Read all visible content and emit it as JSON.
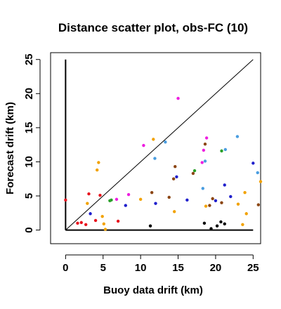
{
  "chart_data": {
    "type": "scatter",
    "title": "Distance scatter plot, obs-FC (10)",
    "xlabel": "Buoy data drift (km)",
    "ylabel": "Forecast drift (km)",
    "xlim": [
      -2,
      26
    ],
    "ylim": [
      -2,
      26
    ],
    "xticks": [
      0,
      5,
      10,
      15,
      20,
      25
    ],
    "yticks": [
      0,
      5,
      10,
      15,
      20,
      25
    ],
    "grid": false,
    "reference_lines": [
      {
        "kind": "diagonal",
        "from": [
          0,
          0
        ],
        "to": [
          25,
          25
        ],
        "color": "#000000"
      },
      {
        "kind": "vertical",
        "from": [
          0,
          0
        ],
        "to": [
          0,
          25
        ],
        "color": "#000000"
      },
      {
        "kind": "horizontal",
        "from": [
          0,
          0
        ],
        "to": [
          25,
          0
        ],
        "color": "#000000"
      }
    ],
    "points": [
      {
        "x": 0.0,
        "y": 4.4,
        "color": "#e8141e"
      },
      {
        "x": 1.6,
        "y": 1.0,
        "color": "#e8141e"
      },
      {
        "x": 2.1,
        "y": 1.1,
        "color": "#e8141e"
      },
      {
        "x": 2.7,
        "y": 0.8,
        "color": "#e8141e"
      },
      {
        "x": 3.1,
        "y": 5.3,
        "color": "#e8141e"
      },
      {
        "x": 4.0,
        "y": 1.4,
        "color": "#e8141e"
      },
      {
        "x": 4.6,
        "y": 5.1,
        "color": "#e8141e"
      },
      {
        "x": 7.0,
        "y": 1.3,
        "color": "#e8141e"
      },
      {
        "x": 3.3,
        "y": 2.4,
        "color": "#2020cc"
      },
      {
        "x": 8.0,
        "y": 3.6,
        "color": "#2020cc"
      },
      {
        "x": 12.0,
        "y": 3.9,
        "color": "#2020cc"
      },
      {
        "x": 14.8,
        "y": 7.8,
        "color": "#2020cc"
      },
      {
        "x": 16.2,
        "y": 4.4,
        "color": "#2020cc"
      },
      {
        "x": 20.0,
        "y": 4.3,
        "color": "#2020cc"
      },
      {
        "x": 21.2,
        "y": 6.6,
        "color": "#2020cc"
      },
      {
        "x": 22.0,
        "y": 4.9,
        "color": "#2020cc"
      },
      {
        "x": 25.0,
        "y": 9.8,
        "color": "#2020cc"
      },
      {
        "x": 2.9,
        "y": 3.9,
        "color": "#f2a200"
      },
      {
        "x": 4.2,
        "y": 8.8,
        "color": "#f2a200"
      },
      {
        "x": 4.4,
        "y": 9.9,
        "color": "#f2a200"
      },
      {
        "x": 4.9,
        "y": 2.0,
        "color": "#f2a200"
      },
      {
        "x": 5.1,
        "y": 0.9,
        "color": "#f2a200"
      },
      {
        "x": 5.3,
        "y": 0.1,
        "color": "#f2a200"
      },
      {
        "x": 10.0,
        "y": 4.5,
        "color": "#f2a200"
      },
      {
        "x": 11.7,
        "y": 13.3,
        "color": "#f2a200"
      },
      {
        "x": 14.5,
        "y": 2.7,
        "color": "#f2a200"
      },
      {
        "x": 18.7,
        "y": 3.5,
        "color": "#f2a200"
      },
      {
        "x": 23.0,
        "y": 3.8,
        "color": "#f2a200"
      },
      {
        "x": 23.6,
        "y": 0.8,
        "color": "#f2a200"
      },
      {
        "x": 23.9,
        "y": 5.5,
        "color": "#f2a200"
      },
      {
        "x": 24.1,
        "y": 2.4,
        "color": "#f2a200"
      },
      {
        "x": 26.0,
        "y": 7.1,
        "color": "#f2a200"
      },
      {
        "x": 5.9,
        "y": 4.3,
        "color": "#2aa02a"
      },
      {
        "x": 6.1,
        "y": 4.4,
        "color": "#2aa02a"
      },
      {
        "x": 17.2,
        "y": 8.7,
        "color": "#2aa02a"
      },
      {
        "x": 20.8,
        "y": 11.6,
        "color": "#2aa02a"
      },
      {
        "x": 6.8,
        "y": 4.5,
        "color": "#ee1ee0"
      },
      {
        "x": 8.4,
        "y": 5.2,
        "color": "#ee1ee0"
      },
      {
        "x": 10.4,
        "y": 12.4,
        "color": "#ee1ee0"
      },
      {
        "x": 15.0,
        "y": 19.3,
        "color": "#ee1ee0"
      },
      {
        "x": 18.2,
        "y": 9.9,
        "color": "#ee1ee0"
      },
      {
        "x": 18.4,
        "y": 11.7,
        "color": "#ee1ee0"
      },
      {
        "x": 18.8,
        "y": 13.5,
        "color": "#ee1ee0"
      },
      {
        "x": 11.9,
        "y": 10.5,
        "color": "#4a9de0"
      },
      {
        "x": 13.3,
        "y": 12.9,
        "color": "#4a9de0"
      },
      {
        "x": 18.3,
        "y": 6.1,
        "color": "#4a9de0"
      },
      {
        "x": 18.6,
        "y": 10.1,
        "color": "#4a9de0"
      },
      {
        "x": 21.3,
        "y": 11.8,
        "color": "#4a9de0"
      },
      {
        "x": 22.9,
        "y": 13.7,
        "color": "#4a9de0"
      },
      {
        "x": 25.6,
        "y": 8.4,
        "color": "#4a9de0"
      },
      {
        "x": 11.5,
        "y": 5.5,
        "color": "#8b4513"
      },
      {
        "x": 13.8,
        "y": 4.8,
        "color": "#8b4513"
      },
      {
        "x": 14.4,
        "y": 7.5,
        "color": "#8b4513"
      },
      {
        "x": 14.6,
        "y": 9.3,
        "color": "#8b4513"
      },
      {
        "x": 17.0,
        "y": 8.3,
        "color": "#8b4513"
      },
      {
        "x": 18.6,
        "y": 12.6,
        "color": "#8b4513"
      },
      {
        "x": 19.2,
        "y": 3.6,
        "color": "#8b4513"
      },
      {
        "x": 19.6,
        "y": 4.6,
        "color": "#8b4513"
      },
      {
        "x": 20.8,
        "y": 4.0,
        "color": "#8b4513"
      },
      {
        "x": 25.7,
        "y": 3.7,
        "color": "#8b4513"
      },
      {
        "x": 11.3,
        "y": 0.6,
        "color": "#000000"
      },
      {
        "x": 18.5,
        "y": 1.0,
        "color": "#000000"
      },
      {
        "x": 19.4,
        "y": 0.2,
        "color": "#000000"
      },
      {
        "x": 20.2,
        "y": 0.6,
        "color": "#000000"
      },
      {
        "x": 20.7,
        "y": 1.2,
        "color": "#000000"
      },
      {
        "x": 21.2,
        "y": 0.9,
        "color": "#000000"
      }
    ]
  }
}
